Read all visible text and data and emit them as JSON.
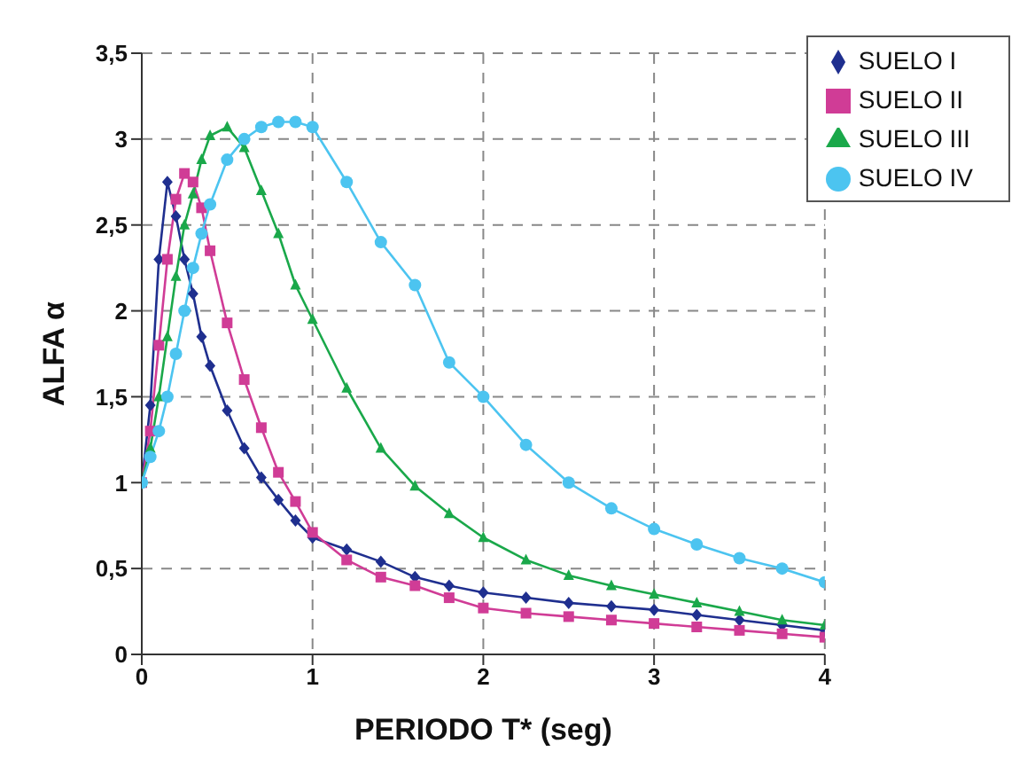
{
  "chart_data": {
    "type": "line",
    "xlabel": "PERIODO T* (seg)",
    "ylabel": "ALFA α",
    "x": [
      0,
      0.05,
      0.1,
      0.15,
      0.2,
      0.25,
      0.3,
      0.35,
      0.4,
      0.5,
      0.6,
      0.7,
      0.8,
      0.9,
      1.0,
      1.2,
      1.4,
      1.6,
      1.8,
      2.0,
      2.25,
      2.5,
      2.75,
      3.0,
      3.25,
      3.5,
      3.75,
      4.0
    ],
    "series": [
      {
        "name": "SUELO I",
        "color": "#1f2f8f",
        "marker": "diamond",
        "values": [
          1,
          1.45,
          2.3,
          2.75,
          2.55,
          2.3,
          2.1,
          1.85,
          1.68,
          1.42,
          1.2,
          1.03,
          0.9,
          0.78,
          0.68,
          0.61,
          0.54,
          0.45,
          0.4,
          0.36,
          0.33,
          0.3,
          0.28,
          0.26,
          0.23,
          0.2,
          0.17,
          0.14
        ]
      },
      {
        "name": "SUELO II",
        "color": "#d03c96",
        "marker": "square",
        "values": [
          1,
          1.3,
          1.8,
          2.3,
          2.65,
          2.8,
          2.75,
          2.6,
          2.35,
          1.93,
          1.6,
          1.32,
          1.06,
          0.89,
          0.71,
          0.55,
          0.45,
          0.4,
          0.33,
          0.27,
          0.24,
          0.22,
          0.2,
          0.18,
          0.16,
          0.14,
          0.12,
          0.1
        ]
      },
      {
        "name": "SUELO III",
        "color": "#1aa84a",
        "marker": "triangle",
        "values": [
          1,
          1.2,
          1.5,
          1.85,
          2.2,
          2.5,
          2.68,
          2.88,
          3.02,
          3.07,
          2.95,
          2.7,
          2.45,
          2.15,
          1.95,
          1.55,
          1.2,
          0.98,
          0.82,
          0.68,
          0.55,
          0.46,
          0.4,
          0.35,
          0.3,
          0.25,
          0.2,
          0.17
        ]
      },
      {
        "name": "SUELO IV",
        "color": "#4cc4f0",
        "marker": "circle",
        "values": [
          1,
          1.15,
          1.3,
          1.5,
          1.75,
          2.0,
          2.25,
          2.45,
          2.62,
          2.88,
          3.0,
          3.07,
          3.1,
          3.1,
          3.07,
          2.75,
          2.4,
          2.15,
          1.7,
          1.5,
          1.22,
          1.0,
          0.85,
          0.73,
          0.64,
          0.56,
          0.5,
          0.42
        ]
      }
    ],
    "xlim": [
      0,
      4
    ],
    "xticks": [
      0,
      1,
      2,
      3,
      4
    ],
    "ylim": [
      0,
      3.5
    ],
    "yticks": [
      0,
      {
        "value": 0.5,
        "label": "0,5"
      },
      1,
      {
        "value": 1.5,
        "label": "1,5"
      },
      2,
      {
        "value": 2.5,
        "label": "2,5"
      },
      3,
      {
        "value": 3.5,
        "label": "3,5"
      }
    ],
    "grid": true,
    "legend": "top right",
    "line_style": "solid"
  }
}
